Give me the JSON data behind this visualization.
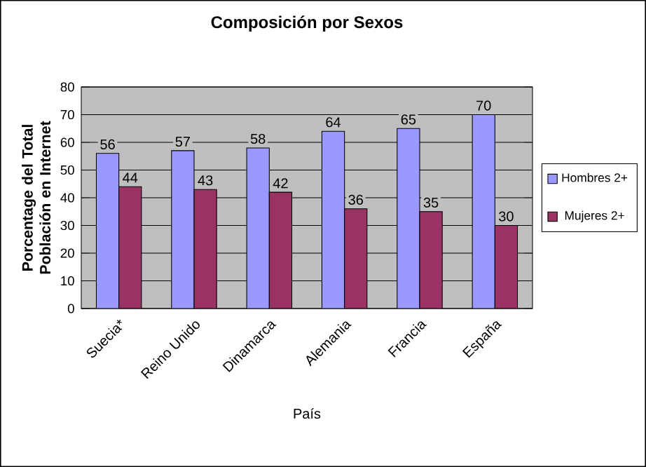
{
  "chart_data": {
    "type": "bar",
    "title": "Composición por Sexos",
    "xlabel": "País",
    "ylabel": "Porcentage del Total Población en Internet",
    "categories": [
      "Suecia*",
      "Reino Unido",
      "Dinamarca",
      "Alemania",
      "Francia",
      "España"
    ],
    "series": [
      {
        "name": "Hombres 2+",
        "color": "#9999ff",
        "values": [
          56,
          57,
          58,
          64,
          65,
          70
        ]
      },
      {
        "name": "Mujeres 2+",
        "color": "#993366",
        "values": [
          44,
          43,
          42,
          36,
          35,
          30
        ]
      }
    ],
    "ylim": [
      0,
      80
    ],
    "yticks": [
      0,
      10,
      20,
      30,
      40,
      50,
      60,
      70,
      80
    ],
    "grid": "y",
    "legend": "right",
    "data_labels": true
  }
}
